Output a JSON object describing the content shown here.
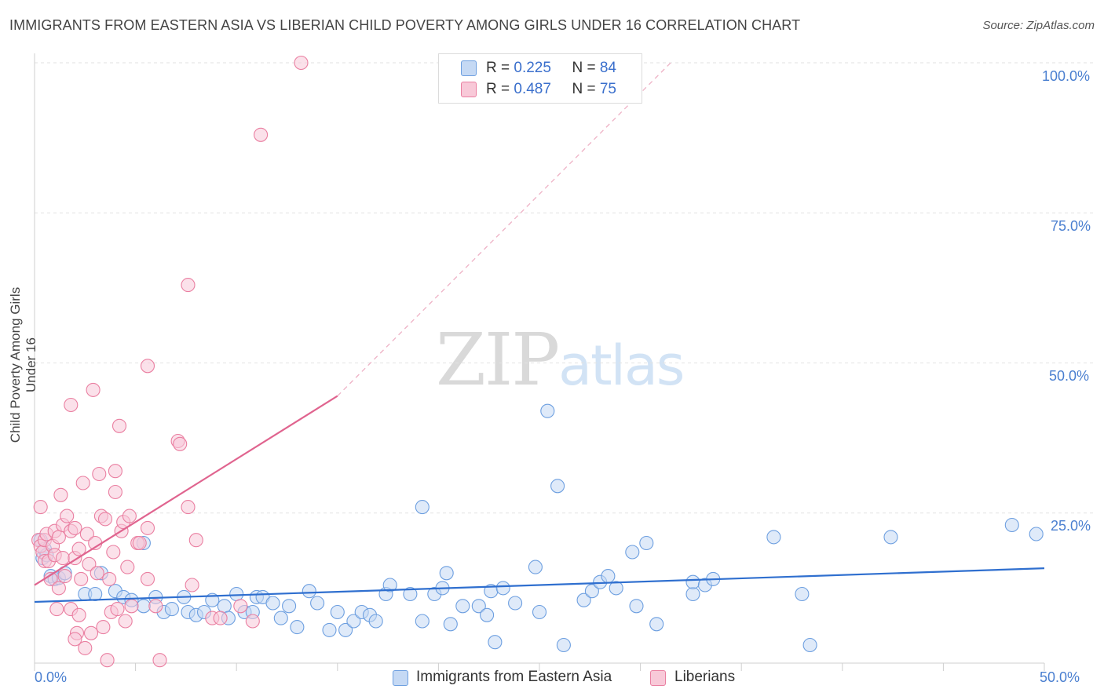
{
  "title": "IMMIGRANTS FROM EASTERN ASIA VS LIBERIAN CHILD POVERTY AMONG GIRLS UNDER 16 CORRELATION CHART",
  "source": "Source: ZipAtlas.com",
  "watermark": {
    "zip": "ZIP",
    "atlas": "atlas"
  },
  "legend": {
    "series1": {
      "r_label": "R = ",
      "r_value": "0.225",
      "n_label": "N = ",
      "n_value": "84"
    },
    "series2": {
      "r_label": "R = ",
      "r_value": "0.487",
      "n_label": "N = ",
      "n_value": "75"
    }
  },
  "chart_data": {
    "type": "scatter",
    "title": "IMMIGRANTS FROM EASTERN ASIA VS LIBERIAN CHILD POVERTY AMONG GIRLS UNDER 16 CORRELATION CHART",
    "xlabel": "",
    "ylabel": "Child Poverty Among Girls Under 16",
    "xlim": [
      0,
      50
    ],
    "ylim": [
      0,
      100
    ],
    "x_tick_labels": [
      "0.0%",
      "50.0%"
    ],
    "y_tick_labels": [
      "100.0%",
      "75.0%",
      "50.0%",
      "25.0%"
    ],
    "y_ticks": [
      100,
      75,
      50,
      25
    ],
    "grid": true,
    "legend_position": "top-center",
    "colors": {
      "blue": "#6d9fe0",
      "blue_fill": "#c5d9f4",
      "blue_line": "#2f6fcf",
      "pink": "#ea7fa1",
      "pink_fill": "#f8c9d8",
      "pink_line": "#e0648f",
      "accent_text": "#4a7fd0"
    },
    "series": [
      {
        "name": "Immigrants from Eastern Asia",
        "color": "#6d9fe0",
        "trend": {
          "x": [
            0,
            50
          ],
          "y": [
            10.2,
            15.8
          ]
        },
        "points": [
          [
            0.3,
            20.5
          ],
          [
            0.4,
            17.5
          ],
          [
            0.5,
            19.0
          ],
          [
            0.6,
            18.0
          ],
          [
            0.8,
            14.5
          ],
          [
            1.0,
            14.0
          ],
          [
            1.2,
            14.2
          ],
          [
            1.5,
            15.0
          ],
          [
            2.5,
            11.5
          ],
          [
            3.0,
            11.5
          ],
          [
            3.3,
            15.0
          ],
          [
            4.0,
            12.0
          ],
          [
            4.4,
            11.0
          ],
          [
            4.8,
            10.5
          ],
          [
            5.4,
            9.5
          ],
          [
            5.4,
            20.0
          ],
          [
            6.0,
            11.0
          ],
          [
            6.4,
            8.5
          ],
          [
            6.8,
            9.0
          ],
          [
            7.4,
            11.0
          ],
          [
            7.6,
            8.5
          ],
          [
            8.0,
            8.0
          ],
          [
            8.4,
            8.5
          ],
          [
            8.8,
            10.5
          ],
          [
            9.4,
            9.5
          ],
          [
            9.6,
            7.5
          ],
          [
            10.0,
            11.5
          ],
          [
            10.4,
            8.5
          ],
          [
            10.8,
            8.5
          ],
          [
            11.0,
            11.0
          ],
          [
            11.3,
            11.0
          ],
          [
            11.8,
            10.0
          ],
          [
            12.2,
            7.5
          ],
          [
            12.6,
            9.5
          ],
          [
            13.0,
            6.0
          ],
          [
            13.6,
            12.0
          ],
          [
            14.0,
            10.0
          ],
          [
            14.6,
            5.5
          ],
          [
            15.0,
            8.5
          ],
          [
            15.4,
            5.5
          ],
          [
            15.8,
            7.0
          ],
          [
            16.2,
            8.5
          ],
          [
            16.6,
            8.0
          ],
          [
            16.9,
            7.0
          ],
          [
            17.4,
            11.5
          ],
          [
            17.6,
            13.0
          ],
          [
            18.6,
            11.5
          ],
          [
            19.2,
            7.0
          ],
          [
            19.2,
            26.0
          ],
          [
            19.8,
            11.5
          ],
          [
            20.2,
            12.5
          ],
          [
            20.4,
            15.0
          ],
          [
            20.6,
            6.5
          ],
          [
            21.2,
            9.5
          ],
          [
            22.0,
            9.5
          ],
          [
            22.4,
            8.0
          ],
          [
            22.6,
            12.0
          ],
          [
            22.8,
            3.5
          ],
          [
            23.2,
            12.5
          ],
          [
            23.8,
            10.0
          ],
          [
            24.8,
            16.0
          ],
          [
            25.0,
            8.5
          ],
          [
            25.4,
            42.0
          ],
          [
            25.9,
            29.5
          ],
          [
            26.2,
            3.0
          ],
          [
            27.2,
            10.5
          ],
          [
            27.6,
            12.0
          ],
          [
            28.0,
            13.5
          ],
          [
            28.4,
            14.5
          ],
          [
            28.8,
            12.5
          ],
          [
            29.6,
            18.5
          ],
          [
            29.8,
            9.5
          ],
          [
            30.3,
            20.0
          ],
          [
            30.8,
            6.5
          ],
          [
            32.6,
            11.5
          ],
          [
            32.6,
            13.5
          ],
          [
            33.2,
            13.0
          ],
          [
            33.6,
            14.0
          ],
          [
            36.6,
            21.0
          ],
          [
            38.0,
            11.5
          ],
          [
            38.4,
            3.0
          ],
          [
            42.4,
            21.0
          ],
          [
            48.4,
            23.0
          ],
          [
            49.6,
            21.5
          ]
        ]
      },
      {
        "name": "Liberians",
        "color": "#ea7fa1",
        "trend": {
          "x": [
            0,
            15
          ],
          "y": [
            13.0,
            44.5
          ]
        },
        "trend_extension": {
          "x": [
            15,
            31.5
          ],
          "y": [
            44.5,
            100
          ]
        },
        "points": [
          [
            0.2,
            20.5
          ],
          [
            0.3,
            19.5
          ],
          [
            0.3,
            26.0
          ],
          [
            0.4,
            18.5
          ],
          [
            0.5,
            17.0
          ],
          [
            0.5,
            20.5
          ],
          [
            0.6,
            21.5
          ],
          [
            0.7,
            17.0
          ],
          [
            0.8,
            14.0
          ],
          [
            0.9,
            19.5
          ],
          [
            1.0,
            18.0
          ],
          [
            1.0,
            22.0
          ],
          [
            1.1,
            9.0
          ],
          [
            1.2,
            12.5
          ],
          [
            1.2,
            21.0
          ],
          [
            1.3,
            28.0
          ],
          [
            1.4,
            17.5
          ],
          [
            1.4,
            23.0
          ],
          [
            1.5,
            14.5
          ],
          [
            1.6,
            24.5
          ],
          [
            1.8,
            22.0
          ],
          [
            1.8,
            43.0
          ],
          [
            1.8,
            9.0
          ],
          [
            2.0,
            17.5
          ],
          [
            2.0,
            22.5
          ],
          [
            2.1,
            5.0
          ],
          [
            2.2,
            8.0
          ],
          [
            2.2,
            19.0
          ],
          [
            2.3,
            14.0
          ],
          [
            2.4,
            30.0
          ],
          [
            2.5,
            2.5
          ],
          [
            2.6,
            21.5
          ],
          [
            2.7,
            16.5
          ],
          [
            2.8,
            5.0
          ],
          [
            2.9,
            45.5
          ],
          [
            3.0,
            20.0
          ],
          [
            3.1,
            15.0
          ],
          [
            3.2,
            31.5
          ],
          [
            3.3,
            24.5
          ],
          [
            3.4,
            6.0
          ],
          [
            3.5,
            24.0
          ],
          [
            3.6,
            0.5
          ],
          [
            3.7,
            14.0
          ],
          [
            3.8,
            8.5
          ],
          [
            3.9,
            18.5
          ],
          [
            4.0,
            32.0
          ],
          [
            4.0,
            28.5
          ],
          [
            4.1,
            9.0
          ],
          [
            4.2,
            39.5
          ],
          [
            4.3,
            22.0
          ],
          [
            4.4,
            23.5
          ],
          [
            4.5,
            7.0
          ],
          [
            4.6,
            16.0
          ],
          [
            4.7,
            24.5
          ],
          [
            4.8,
            9.5
          ],
          [
            5.1,
            20.0
          ],
          [
            5.2,
            20.0
          ],
          [
            5.6,
            49.5
          ],
          [
            5.6,
            14.0
          ],
          [
            5.6,
            22.5
          ],
          [
            6.2,
            0.5
          ],
          [
            7.1,
            37.0
          ],
          [
            7.2,
            36.5
          ],
          [
            7.6,
            26.0
          ],
          [
            7.6,
            63.0
          ],
          [
            7.8,
            13.0
          ],
          [
            8.0,
            20.5
          ],
          [
            8.8,
            7.5
          ],
          [
            9.2,
            7.5
          ],
          [
            10.2,
            9.5
          ],
          [
            10.8,
            7.0
          ],
          [
            11.2,
            88.0
          ],
          [
            13.2,
            100.0
          ],
          [
            6.0,
            9.5
          ],
          [
            2.0,
            4.0
          ]
        ]
      }
    ]
  },
  "bottom_legend": {
    "series1": "Immigrants from Eastern Asia",
    "series2": "Liberians"
  }
}
